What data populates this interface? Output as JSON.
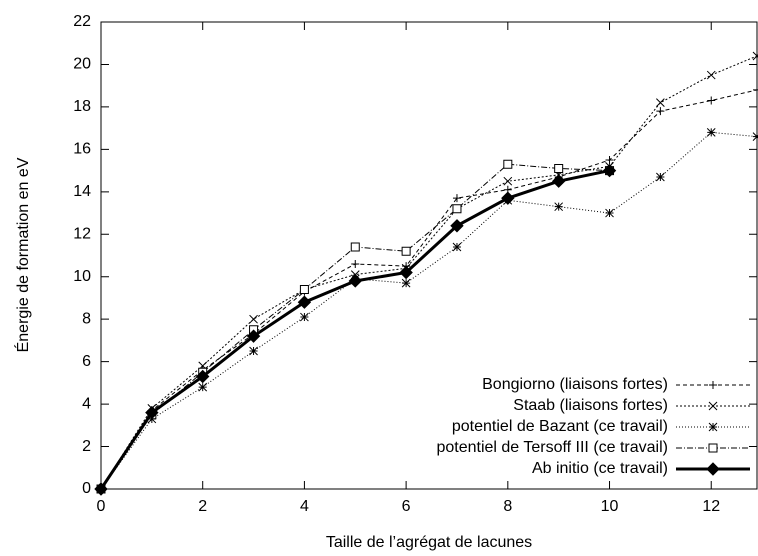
{
  "chart_data": {
    "type": "line",
    "xlabel": "Taille de l’agrégat de lacunes",
    "ylabel": "Énergie de formation en eV",
    "x": [
      0,
      1,
      2,
      3,
      4,
      5,
      6,
      7,
      8,
      9,
      10,
      11,
      12,
      12.9
    ],
    "xlim": [
      0,
      12.9
    ],
    "xticks": [
      0,
      2,
      4,
      6,
      8,
      10,
      12
    ],
    "ylim": [
      0,
      22
    ],
    "yticks": [
      0,
      2,
      4,
      6,
      8,
      10,
      12,
      14,
      16,
      18,
      20,
      22
    ],
    "legend": "lower right",
    "series": [
      {
        "name": "Bongiorno (liaisons fortes)",
        "color": "#000000",
        "marker": "plus",
        "dash": "4,3",
        "values": [
          0,
          3.7,
          5.6,
          7.3,
          9.3,
          10.6,
          10.5,
          13.7,
          14.1,
          14.7,
          15.5,
          17.8,
          18.3,
          18.8
        ]
      },
      {
        "name": "Staab (liaisons fortes)",
        "color": "#000000",
        "marker": "cross",
        "dash": "2,2",
        "values": [
          0,
          3.8,
          5.8,
          8.0,
          9.4,
          10.1,
          10.4,
          13.2,
          14.5,
          14.8,
          15.2,
          18.2,
          19.5,
          20.4
        ]
      },
      {
        "name": "potentiel de Bazant (ce travail)",
        "color": "#000000",
        "marker": "star",
        "dash": "1,2",
        "values": [
          0,
          3.3,
          4.8,
          6.5,
          8.1,
          9.9,
          9.7,
          11.4,
          13.6,
          13.3,
          13.0,
          14.7,
          16.8,
          16.6
        ]
      },
      {
        "name": "potentiel de Tersoff III (ce travail)",
        "color": "#000000",
        "marker": "square",
        "dash": "6,2,1,2",
        "values": [
          0,
          3.5,
          5.5,
          7.5,
          9.4,
          11.4,
          11.2,
          13.2,
          15.3,
          15.1,
          15.0,
          null,
          null,
          null
        ]
      },
      {
        "name": "Ab initio (ce travail)",
        "color": "#000000",
        "marker": "diamond",
        "dash": "none",
        "bold": true,
        "values": [
          0,
          3.6,
          5.3,
          7.2,
          8.8,
          9.8,
          10.2,
          12.4,
          13.7,
          14.5,
          15.0,
          null,
          null,
          null
        ]
      }
    ]
  }
}
